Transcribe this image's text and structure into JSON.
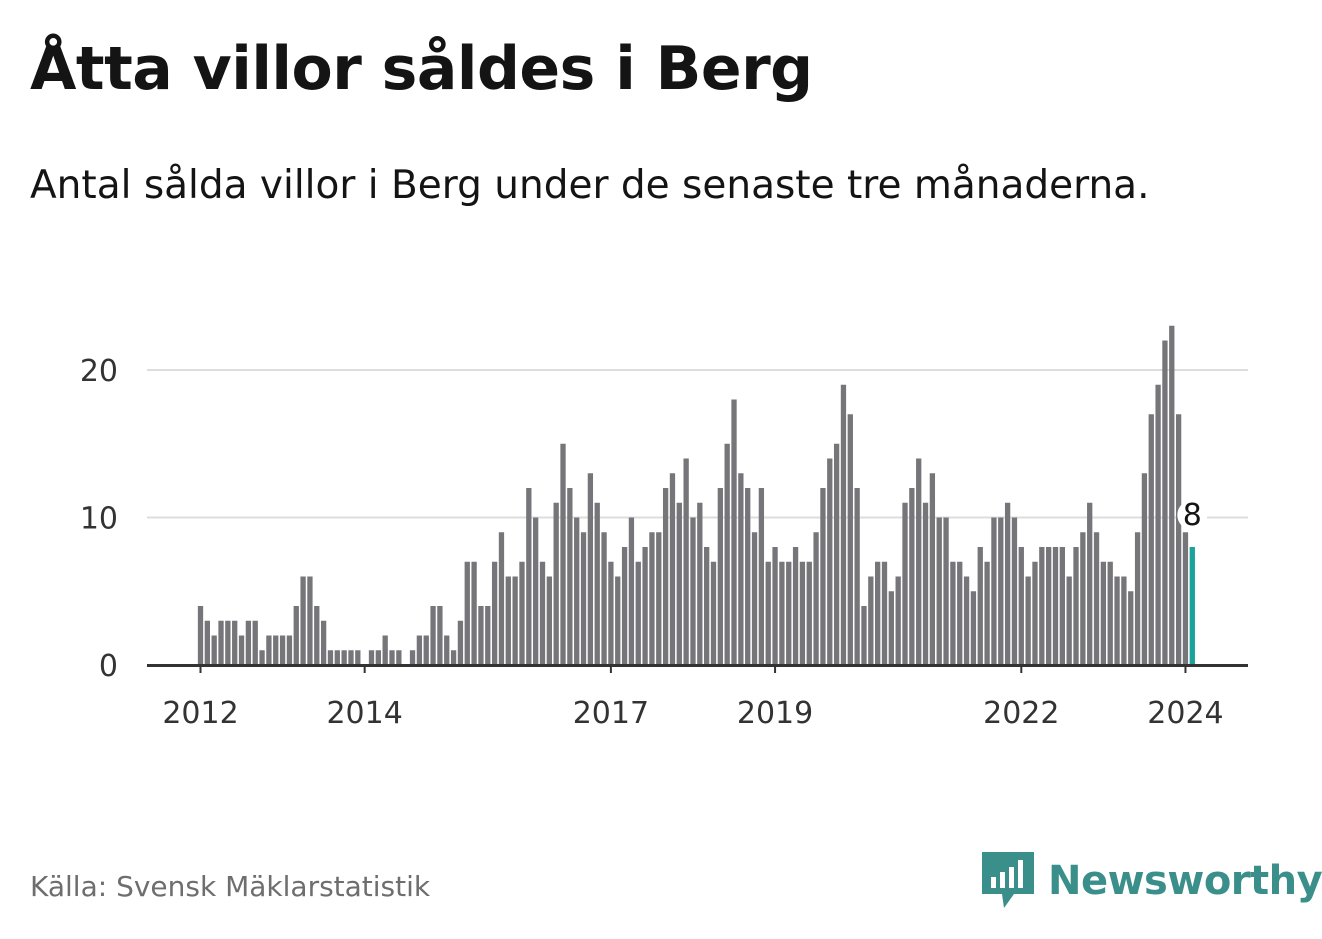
{
  "title": "Åtta villor såldes i Berg",
  "subtitle": "Antal sålda villor i Berg under de senaste tre månaderna.",
  "source": "Källa: Svensk Mäklarstatistik",
  "brand": {
    "name": "Newsworthy",
    "icon": "newsworthy-logo-icon",
    "color": "#3a8f8a"
  },
  "colors": {
    "bar": "#76757a",
    "highlight": "#1aa39b",
    "grid": "#dddddd",
    "axis": "#333333"
  },
  "chart_data": {
    "type": "bar",
    "title": "Åtta villor såldes i Berg",
    "xlabel": "",
    "ylabel": "",
    "ylim": [
      0,
      23
    ],
    "yticks": [
      0,
      10,
      20
    ],
    "x_start": "2012-01",
    "x_end": "2024-02",
    "xticks": [
      {
        "label": "2012",
        "index": 0
      },
      {
        "label": "2014",
        "index": 24
      },
      {
        "label": "2017",
        "index": 60
      },
      {
        "label": "2019",
        "index": 84
      },
      {
        "label": "2022",
        "index": 120
      },
      {
        "label": "2024",
        "index": 144
      }
    ],
    "values": [
      4,
      3,
      2,
      3,
      3,
      3,
      2,
      3,
      3,
      1,
      2,
      2,
      2,
      2,
      4,
      6,
      6,
      4,
      3,
      1,
      1,
      1,
      1,
      1,
      0,
      1,
      1,
      2,
      1,
      1,
      0,
      1,
      2,
      2,
      4,
      4,
      2,
      1,
      3,
      7,
      7,
      4,
      4,
      7,
      9,
      6,
      6,
      7,
      12,
      10,
      7,
      6,
      11,
      15,
      12,
      10,
      9,
      13,
      11,
      9,
      7,
      6,
      8,
      10,
      7,
      8,
      9,
      9,
      12,
      13,
      11,
      14,
      10,
      11,
      8,
      7,
      12,
      15,
      18,
      13,
      12,
      9,
      12,
      7,
      8,
      7,
      7,
      8,
      7,
      7,
      9,
      12,
      14,
      15,
      19,
      17,
      12,
      4,
      6,
      7,
      7,
      5,
      6,
      11,
      12,
      14,
      11,
      13,
      10,
      10,
      7,
      7,
      6,
      5,
      8,
      7,
      10,
      10,
      11,
      10,
      8,
      6,
      7,
      8,
      8,
      8,
      8,
      6,
      8,
      9,
      11,
      9,
      7,
      7,
      6,
      6,
      5,
      9,
      13,
      17,
      19,
      22,
      23,
      17,
      9,
      8
    ],
    "highlight_last": true,
    "annotation": {
      "label": "8",
      "index": 145,
      "value": 8
    }
  }
}
